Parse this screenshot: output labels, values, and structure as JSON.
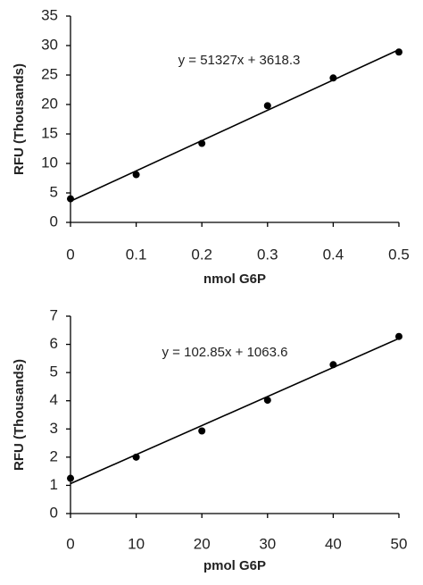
{
  "chart_data": [
    {
      "type": "scatter",
      "x_label": "nmol G6P",
      "y_label": "RFU  (Thousands)",
      "annotation": "y = 51327x + 3618.3",
      "x": [
        0,
        0.1,
        0.2,
        0.3,
        0.4,
        0.5
      ],
      "values": [
        4.0,
        8.1,
        13.4,
        19.8,
        24.5,
        28.9
      ],
      "color": "#000000",
      "trendline": {
        "x": [
          0,
          0.5
        ],
        "values": [
          3.6,
          29.3
        ]
      },
      "xlim": [
        0,
        0.5
      ],
      "xticks": [
        0,
        0.1,
        0.2,
        0.3,
        0.4,
        0.5
      ],
      "ylim": [
        0,
        35
      ],
      "yticks": [
        0,
        5,
        10,
        15,
        20,
        25,
        30,
        35
      ],
      "grid": false
    },
    {
      "type": "scatter",
      "x_label": "pmol G6P",
      "y_label": "RFU  (Thousands)",
      "annotation": "y = 102.85x + 1063.6",
      "x": [
        0,
        10,
        20,
        30,
        40,
        50
      ],
      "values": [
        1.25,
        2.0,
        2.93,
        4.02,
        5.28,
        6.28
      ],
      "color": "#000000",
      "trendline": {
        "x": [
          0,
          50
        ],
        "values": [
          1.06,
          6.21
        ]
      },
      "xlim": [
        0,
        50
      ],
      "xticks": [
        0,
        10,
        20,
        30,
        40,
        50
      ],
      "ylim": [
        0,
        7
      ],
      "yticks": [
        0,
        1,
        2,
        3,
        4,
        5,
        6,
        7
      ],
      "grid": false
    }
  ]
}
